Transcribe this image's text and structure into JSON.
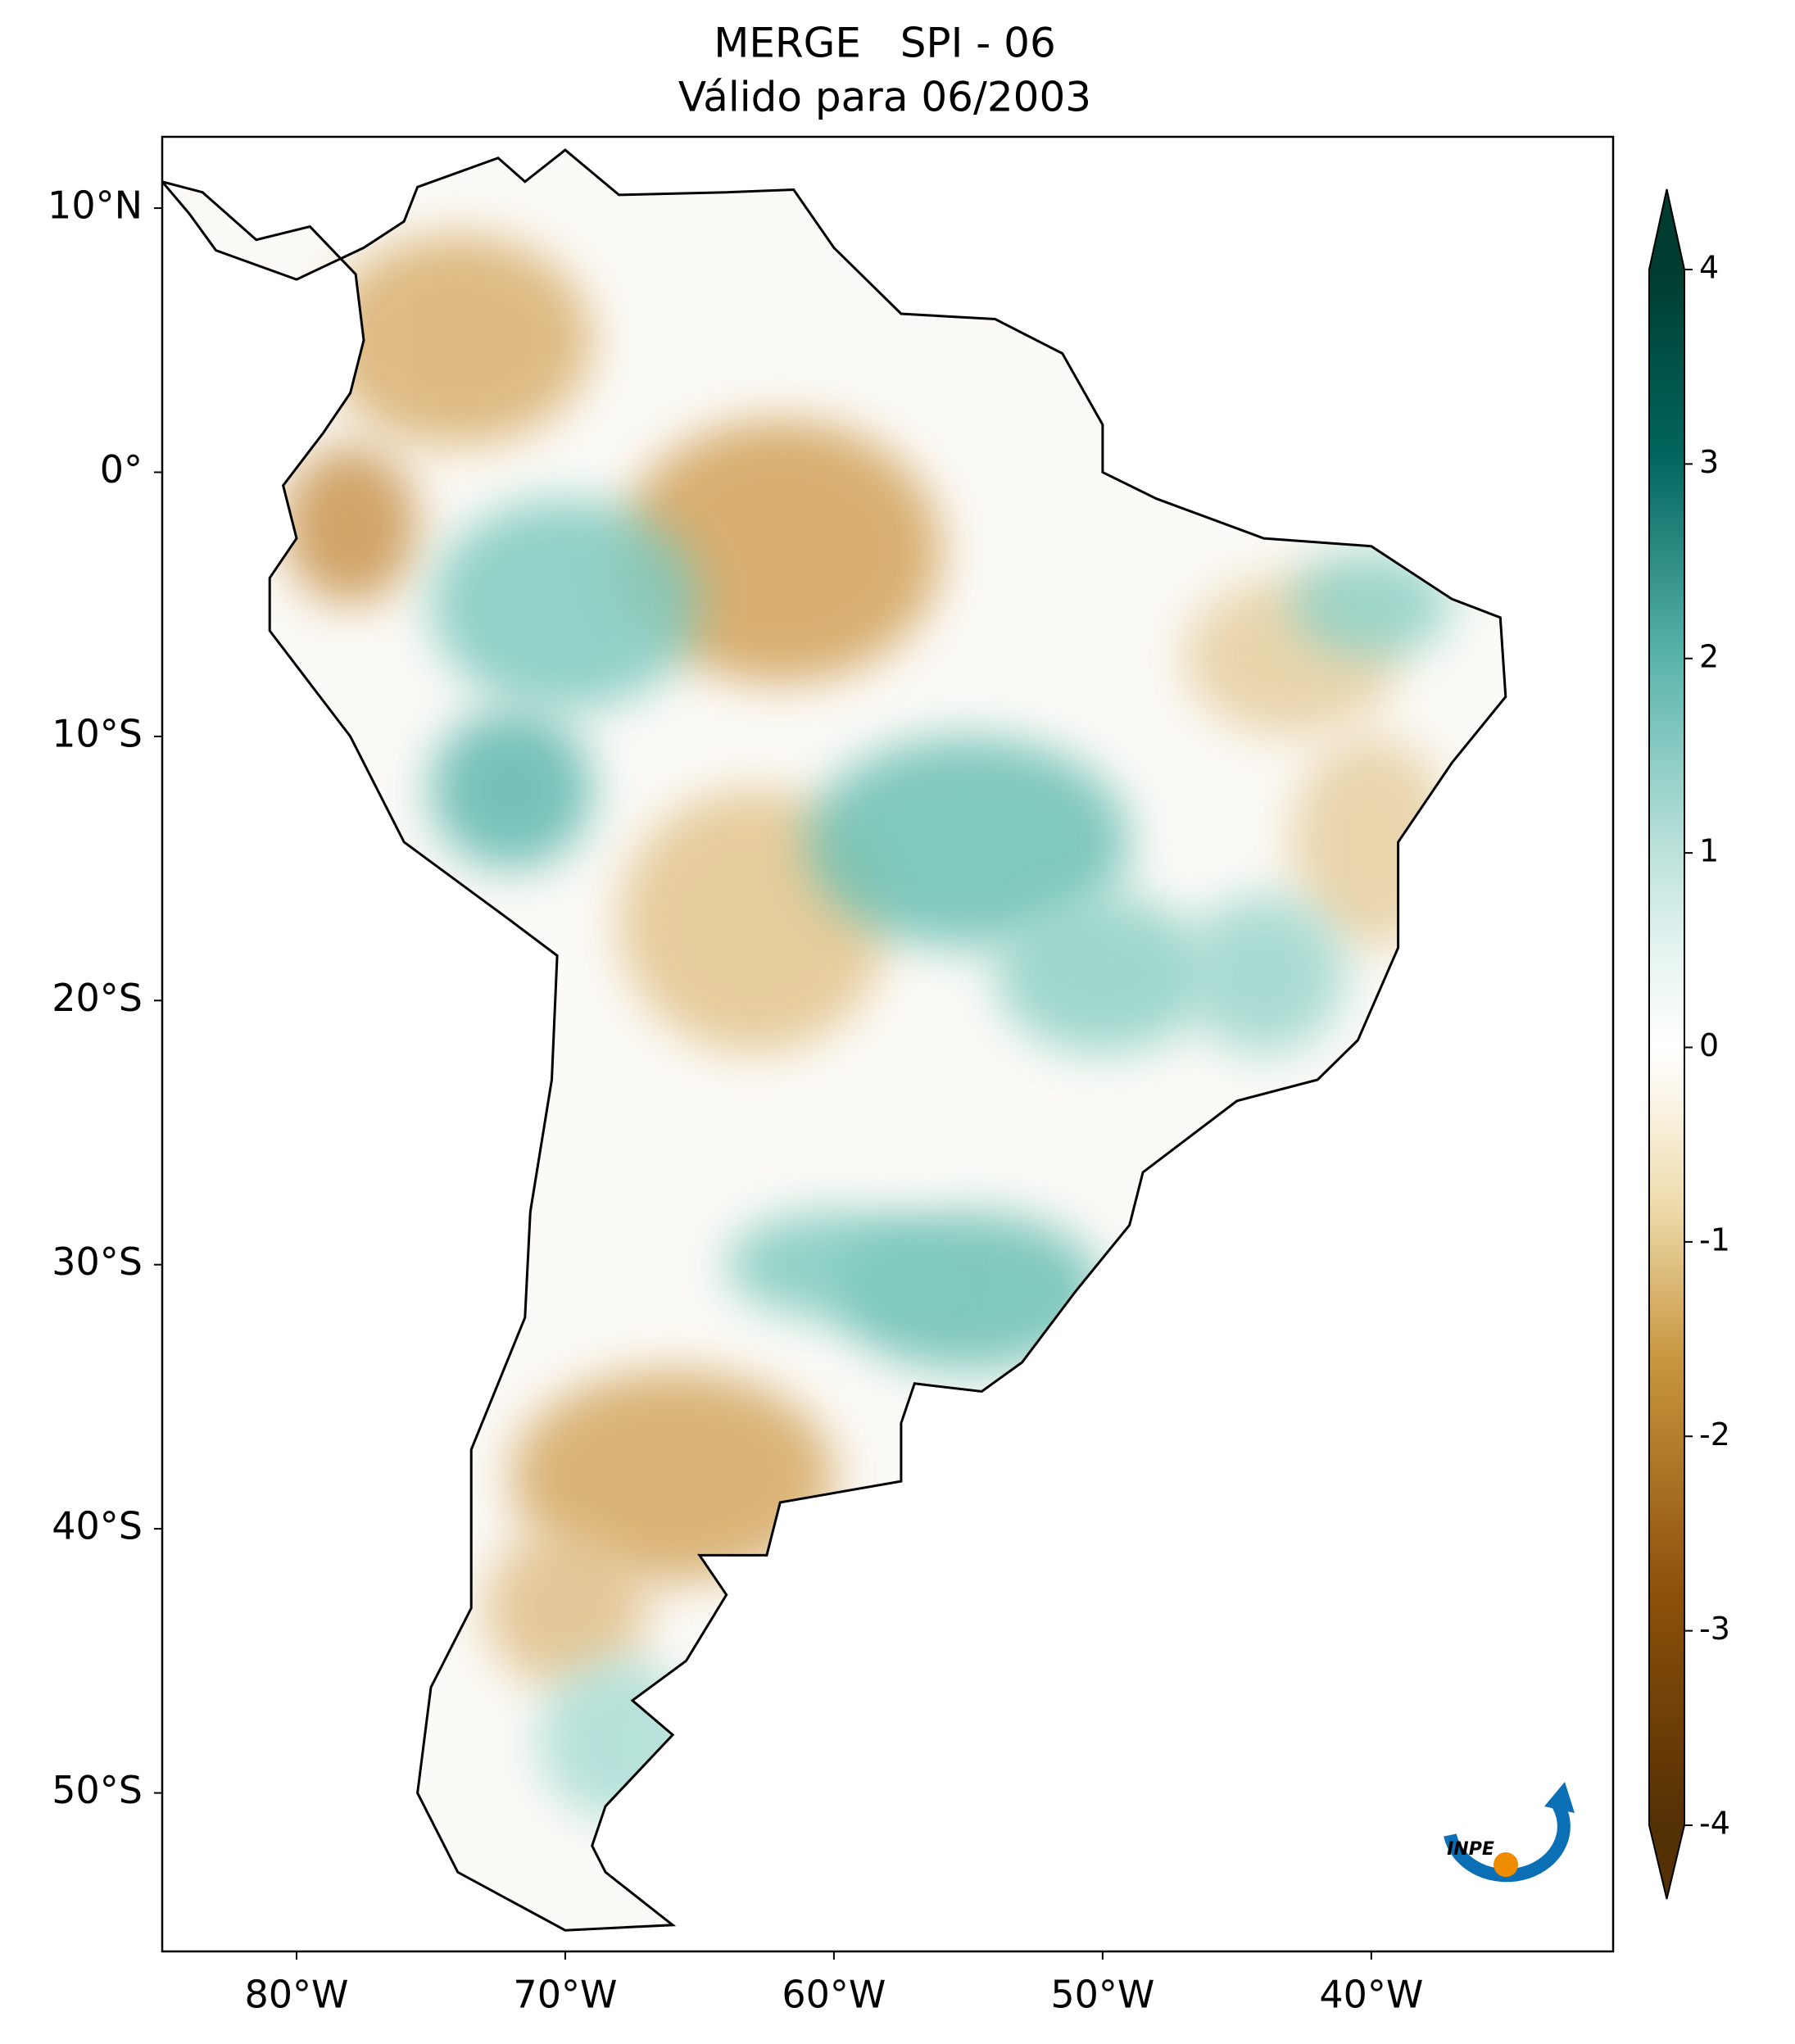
{
  "title": "MERGE   SPI - 06",
  "subtitle": "Válido para 06/2003",
  "map": {
    "xlim": [
      -85,
      -31
    ],
    "ylim": [
      -56,
      12.7
    ],
    "xticks": [
      {
        "value": -80,
        "label": "80°W"
      },
      {
        "value": -70,
        "label": "70°W"
      },
      {
        "value": -60,
        "label": "60°W"
      },
      {
        "value": -50,
        "label": "50°W"
      },
      {
        "value": -40,
        "label": "40°W"
      }
    ],
    "yticks": [
      {
        "value": 10,
        "label": "10°N"
      },
      {
        "value": 0,
        "label": "0°"
      },
      {
        "value": -10,
        "label": "10°S"
      },
      {
        "value": -20,
        "label": "20°S"
      },
      {
        "value": -30,
        "label": "30°S"
      },
      {
        "value": -40,
        "label": "40°S"
      },
      {
        "value": -50,
        "label": "50°S"
      }
    ]
  },
  "colorbar": {
    "lim": [
      -4,
      4
    ],
    "ticks": [
      4,
      3,
      2,
      1,
      0,
      -1,
      -2,
      -3,
      -4
    ],
    "extend": "both"
  },
  "logo": "INPE"
}
